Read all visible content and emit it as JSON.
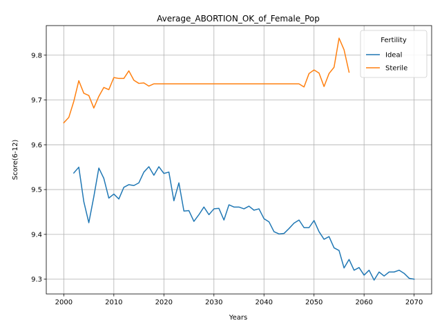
{
  "chart_data": {
    "type": "line",
    "title": "Average_ABORTION_OK_of_Female_Pop",
    "xlabel": "Years",
    "ylabel": "Score(6-12)",
    "xlim": [
      1996.5,
      2073.5
    ],
    "ylim": [
      9.267,
      9.866
    ],
    "xticks": [
      2000,
      2010,
      2020,
      2030,
      2040,
      2050,
      2060,
      2070
    ],
    "yticks": [
      9.3,
      9.4,
      9.5,
      9.6,
      9.7,
      9.8
    ],
    "ytick_labels": [
      "9.3",
      "9.4",
      "9.5",
      "9.6",
      "9.7",
      "9.8"
    ],
    "grid": true,
    "legend": {
      "title": "Fertility",
      "placement": "top-right"
    },
    "series": [
      {
        "name": "Ideal",
        "color": "#1f77b4",
        "x": [
          2002,
          2003,
          2004,
          2005,
          2006,
          2007,
          2008,
          2009,
          2010,
          2011,
          2012,
          2013,
          2014,
          2015,
          2016,
          2017,
          2018,
          2019,
          2020,
          2021,
          2022,
          2023,
          2024,
          2025,
          2026,
          2027,
          2028,
          2029,
          2030,
          2031,
          2032,
          2033,
          2034,
          2035,
          2036,
          2037,
          2038,
          2039,
          2040,
          2041,
          2042,
          2043,
          2044,
          2045,
          2046,
          2047,
          2048,
          2049,
          2050,
          2051,
          2052,
          2053,
          2054,
          2055,
          2056,
          2057,
          2058,
          2059,
          2060,
          2061,
          2062,
          2063,
          2064,
          2065,
          2066,
          2067,
          2068,
          2069,
          2070
        ],
        "y": [
          9.537,
          9.55,
          9.473,
          9.426,
          9.484,
          9.548,
          9.525,
          9.481,
          9.49,
          9.479,
          9.505,
          9.511,
          9.509,
          9.515,
          9.539,
          9.551,
          9.532,
          9.551,
          9.536,
          9.539,
          9.475,
          9.515,
          9.452,
          9.453,
          9.429,
          9.444,
          9.461,
          9.444,
          9.457,
          9.458,
          9.432,
          9.466,
          9.461,
          9.461,
          9.457,
          9.463,
          9.454,
          9.457,
          9.435,
          9.428,
          9.406,
          9.401,
          9.402,
          9.413,
          9.425,
          9.432,
          9.415,
          9.415,
          9.431,
          9.406,
          9.389,
          9.395,
          9.37,
          9.364,
          9.325,
          9.344,
          9.32,
          9.326,
          9.309,
          9.32,
          9.298,
          9.316,
          9.307,
          9.316,
          9.316,
          9.32,
          9.313,
          9.302,
          9.3
        ]
      },
      {
        "name": "Sterile",
        "color": "#ff7f0e",
        "x": [
          2000,
          2001,
          2002,
          2003,
          2004,
          2005,
          2006,
          2007,
          2008,
          2009,
          2010,
          2011,
          2012,
          2013,
          2014,
          2015,
          2016,
          2017,
          2018,
          2019,
          2020,
          2021,
          2022,
          2023,
          2024,
          2025,
          2026,
          2027,
          2028,
          2029,
          2030,
          2031,
          2032,
          2033,
          2034,
          2035,
          2036,
          2037,
          2038,
          2039,
          2040,
          2041,
          2042,
          2043,
          2044,
          2045,
          2046,
          2047,
          2048,
          2049,
          2050,
          2051,
          2052,
          2053,
          2054,
          2055,
          2056,
          2057
        ],
        "y": [
          9.649,
          9.661,
          9.697,
          9.743,
          9.715,
          9.71,
          9.682,
          9.708,
          9.728,
          9.723,
          9.75,
          9.748,
          9.748,
          9.765,
          9.744,
          9.737,
          9.738,
          9.731,
          9.736,
          9.736,
          9.736,
          9.736,
          9.736,
          9.736,
          9.736,
          9.736,
          9.736,
          9.736,
          9.736,
          9.736,
          9.736,
          9.736,
          9.736,
          9.736,
          9.736,
          9.736,
          9.736,
          9.736,
          9.736,
          9.736,
          9.736,
          9.736,
          9.736,
          9.736,
          9.736,
          9.736,
          9.736,
          9.736,
          9.729,
          9.759,
          9.767,
          9.76,
          9.73,
          9.759,
          9.773,
          9.838,
          9.812,
          9.762
        ]
      }
    ]
  }
}
